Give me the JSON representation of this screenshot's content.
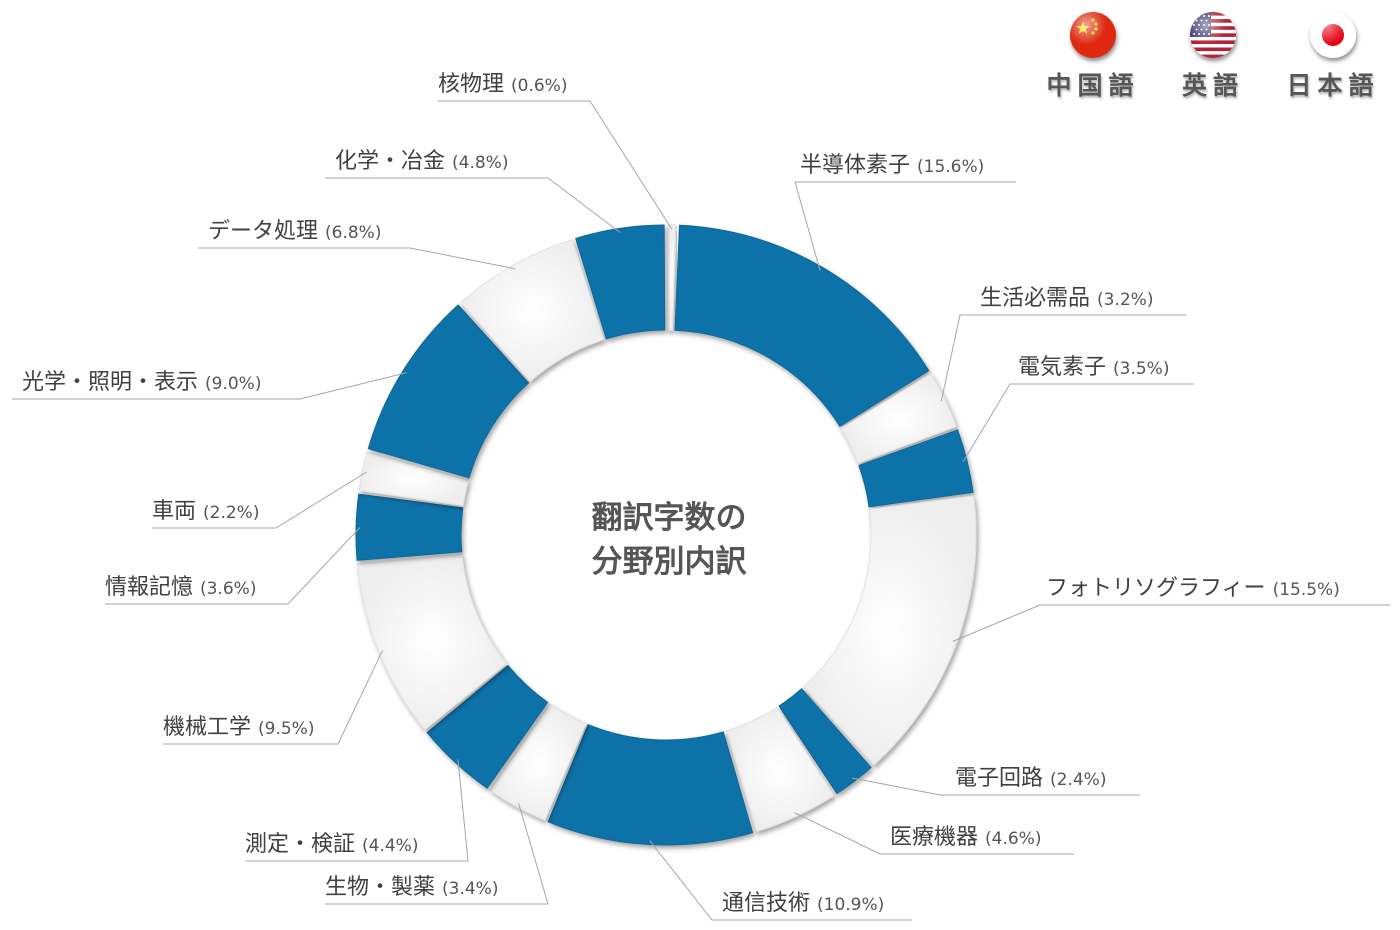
{
  "languages": [
    {
      "label": "中国語",
      "flag": "china-flag-icon"
    },
    {
      "label": "英語",
      "flag": "usa-flag-icon"
    },
    {
      "label": "日本語",
      "flag": "japan-flag-icon"
    }
  ],
  "colors": {
    "blue": "#0b72a8",
    "light": "#f4f4f4",
    "leader": "#a6a6a6",
    "label": "#404040"
  },
  "chart_data": {
    "type": "pie",
    "donut": true,
    "title": "翻訳字数の分野別内訳",
    "title_lines": [
      "翻訳字数の",
      "分野別内訳"
    ],
    "slices": [
      {
        "name": "核物理",
        "value": 0.6,
        "pct_label": "(0.6%)",
        "color": "light"
      },
      {
        "name": "半導体素子",
        "value": 15.6,
        "pct_label": "(15.6%)",
        "color": "blue"
      },
      {
        "name": "生活必需品",
        "value": 3.2,
        "pct_label": "(3.2%)",
        "color": "light"
      },
      {
        "name": "電気素子",
        "value": 3.5,
        "pct_label": "(3.5%)",
        "color": "blue"
      },
      {
        "name": "フォトリソグラフィー",
        "value": 15.5,
        "pct_label": "(15.5%)",
        "color": "light"
      },
      {
        "name": "電子回路",
        "value": 2.4,
        "pct_label": "(2.4%)",
        "color": "blue"
      },
      {
        "name": "医療機器",
        "value": 4.6,
        "pct_label": "(4.6%)",
        "color": "light"
      },
      {
        "name": "通信技術",
        "value": 10.9,
        "pct_label": "(10.9%)",
        "color": "blue"
      },
      {
        "name": "生物・製薬",
        "value": 3.4,
        "pct_label": "(3.4%)",
        "color": "light"
      },
      {
        "name": "測定・検証",
        "value": 4.4,
        "pct_label": "(4.4%)",
        "color": "blue"
      },
      {
        "name": "機械工学",
        "value": 9.5,
        "pct_label": "(9.5%)",
        "color": "light"
      },
      {
        "name": "情報記憶",
        "value": 3.6,
        "pct_label": "(3.6%)",
        "color": "blue"
      },
      {
        "name": "車両",
        "value": 2.2,
        "pct_label": "(2.2%)",
        "color": "light"
      },
      {
        "name": "光学・照明・表示",
        "value": 9.0,
        "pct_label": "(9.0%)",
        "color": "blue"
      },
      {
        "name": "データ処理",
        "value": 6.8,
        "pct_label": "(6.8%)",
        "color": "light"
      },
      {
        "name": "化学・冶金",
        "value": 4.8,
        "pct_label": "(4.8%)",
        "color": "blue"
      }
    ]
  }
}
